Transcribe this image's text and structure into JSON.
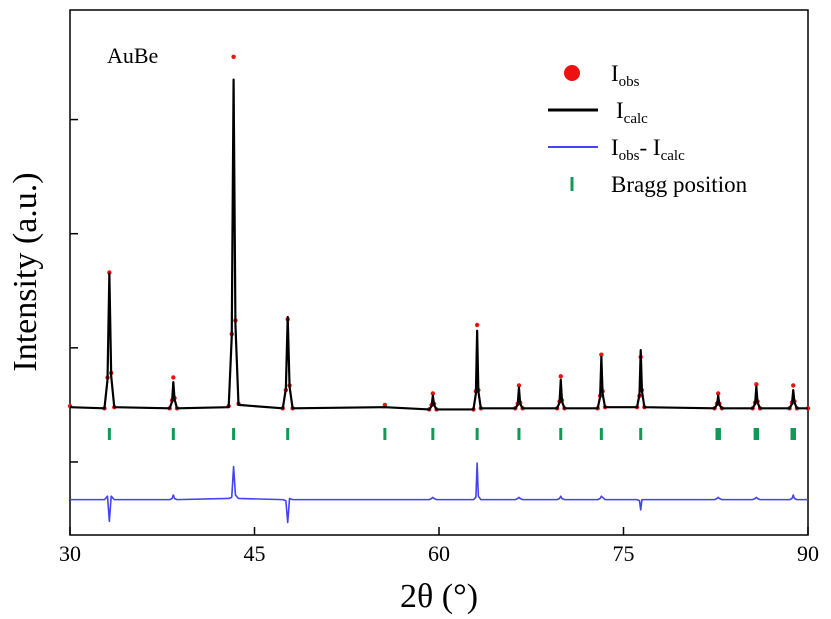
{
  "chart_data": {
    "type": "line",
    "annotation": "AuBe",
    "xlabel": "2θ (°)",
    "ylabel": "Intensity (a.u.)",
    "xlim": [
      30,
      90
    ],
    "xticks": [
      30,
      45,
      60,
      75,
      90
    ],
    "ylim": [
      -0.64,
      3.96
    ],
    "yticks": [
      0,
      1,
      2,
      3
    ],
    "legend": "upper right",
    "x": [
      30,
      32.8,
      33.05,
      33.2,
      33.35,
      33.6,
      38.1,
      38.3,
      38.4,
      38.5,
      38.7,
      42.9,
      43.15,
      43.3,
      43.45,
      43.7,
      47.3,
      47.55,
      47.7,
      47.85,
      48.1,
      55.6,
      59.2,
      59.4,
      59.5,
      59.6,
      59.8,
      62.8,
      63.0,
      63.1,
      63.2,
      63.4,
      66.2,
      66.4,
      66.5,
      66.6,
      66.8,
      69.6,
      69.8,
      69.9,
      70.0,
      70.2,
      72.9,
      73.1,
      73.2,
      73.3,
      73.5,
      76.1,
      76.3,
      76.4,
      76.5,
      76.7,
      82.4,
      82.6,
      82.7,
      82.8,
      83.0,
      85.5,
      85.7,
      85.8,
      85.9,
      86.1,
      88.5,
      88.7,
      88.8,
      88.9,
      89.1,
      90
    ],
    "series": [
      {
        "name": "Iobs",
        "color": "#ee1111",
        "style": "dots",
        "values": [
          0.49,
          0.47,
          0.74,
          1.66,
          0.78,
          0.48,
          0.47,
          0.54,
          0.74,
          0.56,
          0.47,
          0.49,
          1.12,
          3.55,
          1.24,
          0.51,
          0.47,
          0.63,
          1.25,
          0.67,
          0.47,
          0.5,
          0.46,
          0.5,
          0.6,
          0.51,
          0.46,
          0.46,
          0.62,
          1.2,
          0.63,
          0.47,
          0.47,
          0.51,
          0.67,
          0.52,
          0.47,
          0.47,
          0.53,
          0.75,
          0.54,
          0.47,
          0.47,
          0.58,
          0.94,
          0.62,
          0.48,
          0.48,
          0.58,
          0.92,
          0.63,
          0.48,
          0.47,
          0.51,
          0.6,
          0.51,
          0.47,
          0.47,
          0.52,
          0.68,
          0.53,
          0.47,
          0.47,
          0.52,
          0.67,
          0.53,
          0.47,
          0.47
        ]
      },
      {
        "name": "Icalc",
        "color": "#000000",
        "style": "line",
        "values": [
          0.48,
          0.47,
          0.72,
          1.65,
          0.75,
          0.48,
          0.47,
          0.53,
          0.7,
          0.55,
          0.47,
          0.48,
          1.1,
          3.35,
          1.2,
          0.5,
          0.47,
          0.64,
          1.27,
          0.66,
          0.47,
          0.48,
          0.46,
          0.49,
          0.58,
          0.5,
          0.46,
          0.46,
          0.6,
          1.15,
          0.62,
          0.47,
          0.47,
          0.5,
          0.65,
          0.51,
          0.47,
          0.47,
          0.52,
          0.72,
          0.53,
          0.47,
          0.47,
          0.57,
          0.92,
          0.6,
          0.48,
          0.48,
          0.59,
          0.98,
          0.62,
          0.48,
          0.47,
          0.5,
          0.58,
          0.5,
          0.47,
          0.47,
          0.51,
          0.66,
          0.52,
          0.47,
          0.47,
          0.51,
          0.63,
          0.52,
          0.47,
          0.47
        ]
      },
      {
        "name": "Iobs- Icalc",
        "color": "#4444ee",
        "style": "line",
        "values": [
          -0.33,
          -0.33,
          -0.3,
          -0.52,
          -0.3,
          -0.33,
          -0.33,
          -0.32,
          -0.29,
          -0.32,
          -0.33,
          -0.32,
          -0.31,
          -0.04,
          -0.29,
          -0.32,
          -0.33,
          -0.34,
          -0.53,
          -0.32,
          -0.33,
          -0.33,
          -0.33,
          -0.32,
          -0.31,
          -0.32,
          -0.33,
          -0.33,
          -0.31,
          -0.01,
          -0.3,
          -0.33,
          -0.33,
          -0.32,
          -0.31,
          -0.32,
          -0.33,
          -0.33,
          -0.32,
          -0.3,
          -0.32,
          -0.33,
          -0.33,
          -0.32,
          -0.3,
          -0.31,
          -0.33,
          -0.33,
          -0.34,
          -0.42,
          -0.33,
          -0.33,
          -0.33,
          -0.32,
          -0.31,
          -0.32,
          -0.33,
          -0.33,
          -0.32,
          -0.31,
          -0.32,
          -0.33,
          -0.33,
          -0.32,
          -0.29,
          -0.32,
          -0.33,
          -0.33
        ]
      },
      {
        "name": "Bragg position",
        "color": "#119955",
        "style": "ticks",
        "x": [
          33.2,
          38.4,
          43.3,
          47.7,
          55.6,
          59.5,
          63.1,
          66.5,
          69.9,
          73.2,
          76.4,
          82.6,
          82.8,
          85.7,
          85.9,
          88.7,
          88.9
        ]
      }
    ]
  }
}
